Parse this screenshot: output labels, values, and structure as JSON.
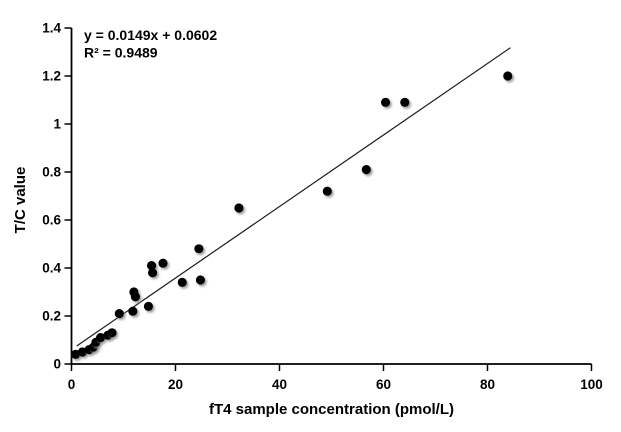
{
  "chart_data": {
    "type": "scatter",
    "title": "",
    "xlabel": "fT4 sample concentration (pmol/L)",
    "ylabel": "T/C value",
    "xlim": [
      0,
      100
    ],
    "ylim": [
      0,
      1.4
    ],
    "grid": false,
    "legend": false,
    "xticks": {
      "values": [
        0,
        20,
        40,
        60,
        80,
        100
      ],
      "labels": [
        "0",
        "20",
        "40",
        "60",
        "80",
        "100"
      ]
    },
    "yticks": {
      "values": [
        0,
        0.2,
        0.4,
        0.6,
        0.8,
        1.0,
        1.2,
        1.4
      ],
      "labels": [
        "0",
        "0.2",
        "0.4",
        "0.6",
        "0.8",
        "1",
        "1.2",
        "1.4"
      ]
    },
    "points": [
      [
        0.8,
        0.04
      ],
      [
        2.1,
        0.05
      ],
      [
        3.4,
        0.06
      ],
      [
        4.2,
        0.07
      ],
      [
        4.7,
        0.09
      ],
      [
        5.6,
        0.11
      ],
      [
        7.0,
        0.12
      ],
      [
        7.8,
        0.13
      ],
      [
        9.2,
        0.21
      ],
      [
        11.8,
        0.22
      ],
      [
        12.0,
        0.3
      ],
      [
        12.3,
        0.28
      ],
      [
        14.8,
        0.24
      ],
      [
        15.4,
        0.41
      ],
      [
        15.6,
        0.38
      ],
      [
        17.6,
        0.42
      ],
      [
        21.3,
        0.34
      ],
      [
        24.5,
        0.48
      ],
      [
        24.8,
        0.35
      ],
      [
        32.2,
        0.65
      ],
      [
        49.2,
        0.72
      ],
      [
        56.7,
        0.81
      ],
      [
        60.4,
        1.09
      ],
      [
        64.1,
        1.09
      ],
      [
        83.9,
        1.2
      ]
    ],
    "trendline": {
      "fit": "linear",
      "slope": 0.0149,
      "intercept": 0.0602,
      "r2": 0.9489,
      "x_start": 1.0,
      "x_end": 84.4,
      "equation_label": "y = 0.0149x + 0.0602",
      "r2_label": "R² = 0.9489"
    },
    "colors": {
      "point": "#000000",
      "point_shadow": "#8f8f8f",
      "trendline": "#1a1a1a",
      "axis": "#000000",
      "text": "#000000",
      "background": "#ffffff"
    }
  }
}
